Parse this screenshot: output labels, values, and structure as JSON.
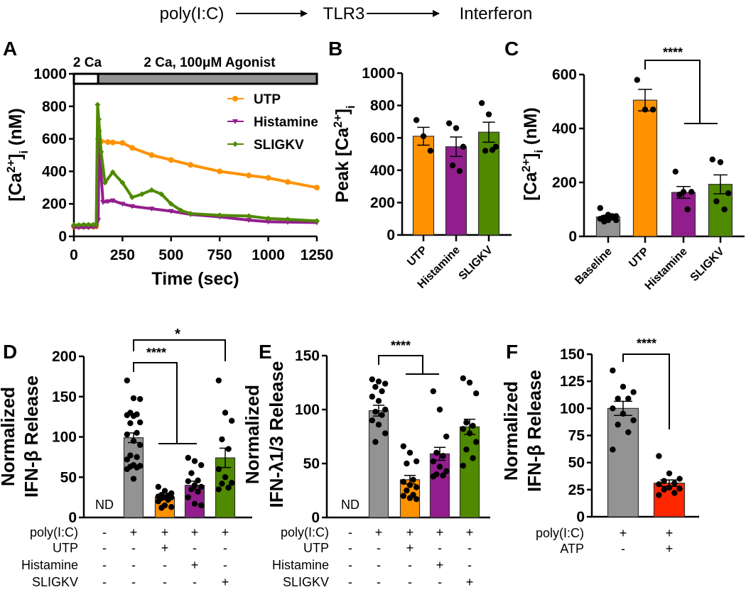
{
  "header": {
    "items": [
      "poly(I:C)",
      "TLR3",
      "Interferon"
    ]
  },
  "colors": {
    "UTP": "#ff9200",
    "Histamine": "#921e8e",
    "SLIGKV": "#4f8a00",
    "control": "#939393",
    "ATP": "#ff2600"
  },
  "chart_data": [
    {
      "panel": "A",
      "type": "line",
      "bar_segments": [
        {
          "label": "2 Ca",
          "from": 0,
          "to": 125
        },
        {
          "label": "2 Ca, 100μM Agonist",
          "from": 125,
          "to": 1250
        }
      ],
      "xlabel": "Time (sec)",
      "ylabel_parts": [
        {
          "text": "[Ca"
        },
        {
          "text": "2+",
          "pos": "sup"
        },
        {
          "text": "]"
        },
        {
          "text": "i",
          "pos": "sub"
        },
        {
          "text": " (nM)"
        }
      ],
      "xlim": [
        0,
        1250
      ],
      "ylim": [
        0,
        1000
      ],
      "xticks": [
        "0",
        "250",
        "500",
        "750",
        "1000",
        "1250"
      ],
      "yticks": [
        "0",
        "200",
        "400",
        "600",
        "800",
        "1000"
      ],
      "legend_position": "top-right",
      "series": [
        {
          "name": "UTP",
          "marker": "circle",
          "x": [
            0,
            25,
            50,
            75,
            100,
            115,
            125,
            140,
            175,
            200,
            250,
            300,
            400,
            500,
            600,
            750,
            900,
            1000,
            1100,
            1250
          ],
          "y": [
            60,
            60,
            60,
            60,
            60,
            62,
            600,
            585,
            580,
            578,
            575,
            545,
            500,
            470,
            440,
            400,
            375,
            360,
            335,
            300
          ]
        },
        {
          "name": "Histamine",
          "marker": "triangle",
          "x": [
            0,
            25,
            50,
            75,
            100,
            115,
            125,
            130,
            140,
            150,
            175,
            200,
            250,
            300,
            400,
            500,
            600,
            750,
            900,
            1000,
            1100,
            1250
          ],
          "y": [
            55,
            55,
            55,
            55,
            58,
            60,
            100,
            640,
            380,
            210,
            215,
            220,
            200,
            185,
            170,
            155,
            135,
            120,
            100,
            90,
            88,
            85
          ]
        },
        {
          "name": "SLIGKV",
          "marker": "diamond",
          "x": [
            0,
            25,
            50,
            75,
            100,
            115,
            122,
            128,
            140,
            160,
            200,
            250,
            300,
            350,
            400,
            450,
            500,
            550,
            600,
            750,
            900,
            1000,
            1100,
            1250
          ],
          "y": [
            70,
            70,
            72,
            72,
            72,
            72,
            810,
            720,
            520,
            330,
            395,
            330,
            240,
            260,
            285,
            260,
            200,
            160,
            140,
            130,
            125,
            110,
            105,
            95
          ]
        }
      ]
    },
    {
      "panel": "B",
      "type": "bar",
      "ylabel_parts": [
        {
          "text": "Peak [Ca"
        },
        {
          "text": "2+",
          "pos": "sup"
        },
        {
          "text": "]"
        },
        {
          "text": "i",
          "pos": "sub"
        }
      ],
      "ylim": [
        0,
        1000
      ],
      "yticks": [
        "0",
        "200",
        "400",
        "600",
        "800",
        "1000"
      ],
      "categories": [
        "UTP",
        "Histamine",
        "SLIGKV"
      ],
      "means": [
        610,
        545,
        635
      ],
      "sem": [
        55,
        60,
        62
      ],
      "points": [
        [
          710,
          610,
          520
        ],
        [
          690,
          660,
          545,
          430,
          395
        ],
        [
          815,
          745,
          545,
          520,
          525
        ]
      ]
    },
    {
      "panel": "C",
      "type": "bar",
      "ylabel_parts": [
        {
          "text": "[Ca"
        },
        {
          "text": "2+",
          "pos": "sup"
        },
        {
          "text": "]"
        },
        {
          "text": "i",
          "pos": "sub"
        },
        {
          "text": " (nM)"
        }
      ],
      "ylim": [
        0,
        600
      ],
      "yticks": [
        "0",
        "200",
        "400",
        "600"
      ],
      "categories": [
        "Baseline",
        "UTP",
        "Histamine",
        "SLIGKV"
      ],
      "means": [
        72,
        505,
        163,
        193
      ],
      "sem": [
        5,
        40,
        22,
        35
      ],
      "points": [
        [
          105,
          80,
          75,
          70,
          75,
          65,
          60,
          60,
          55,
          70
        ],
        [
          580,
          470,
          470
        ],
        [
          240,
          165,
          165,
          155,
          100
        ],
        [
          285,
          275,
          160,
          130,
          100
        ]
      ],
      "significance": [
        {
          "label": "****",
          "from": "UTP",
          "to": [
            "Histamine",
            "SLIGKV"
          ]
        }
      ]
    },
    {
      "panel": "D",
      "type": "bar",
      "ylabel_lines": [
        "Normalized",
        "IFN-β Release"
      ],
      "ylim": [
        0,
        200
      ],
      "yticks": [
        "0",
        "50",
        "100",
        "150",
        "200"
      ],
      "nd_label": "ND",
      "groups": [
        "none",
        "poly(I:C)",
        "poly(I:C)+UTP",
        "poly(I:C)+Histamine",
        "poly(I:C)+SLIGKV"
      ],
      "means": [
        null,
        99,
        25,
        40,
        74
      ],
      "sem": [
        null,
        6,
        2,
        5,
        12
      ],
      "points": [
        [],
        [
          170,
          148,
          147,
          130,
          128,
          127,
          126,
          118,
          117,
          105,
          103,
          95,
          90,
          77,
          75,
          72,
          65,
          64,
          63,
          62,
          60,
          48
        ],
        [
          38,
          33,
          30,
          28,
          27,
          26,
          25,
          25,
          24,
          22,
          20,
          15,
          13,
          12
        ],
        [
          74,
          70,
          65,
          55,
          46,
          45,
          40,
          38,
          35,
          32,
          25,
          17,
          15
        ],
        [
          170,
          130,
          120,
          97,
          85,
          60,
          50,
          43,
          42,
          37,
          35
        ]
      ],
      "bar_colors": [
        "none",
        "control",
        "UTP",
        "Histamine",
        "SLIGKV"
      ],
      "conditions": [
        {
          "label": "poly(I:C)",
          "values": [
            "-",
            "+",
            "+",
            "+",
            "+"
          ]
        },
        {
          "label": "UTP",
          "values": [
            "-",
            "-",
            "+",
            "-",
            "-"
          ]
        },
        {
          "label": "Histamine",
          "values": [
            "-",
            "-",
            "-",
            "+",
            "-"
          ]
        },
        {
          "label": "SLIGKV",
          "values": [
            "-",
            "-",
            "-",
            "-",
            "+"
          ]
        }
      ],
      "significance": [
        {
          "label": "*",
          "from": 1,
          "to": [
            4
          ]
        },
        {
          "label": "****",
          "from": 1,
          "to": [
            2,
            3
          ]
        }
      ]
    },
    {
      "panel": "E",
      "type": "bar",
      "ylabel_lines": [
        "Normalized",
        "IFN-λ1/3 Release"
      ],
      "ylim": [
        0,
        150
      ],
      "yticks": [
        "0",
        "50",
        "100",
        "150"
      ],
      "nd_label": "ND",
      "groups": [
        "none",
        "poly(I:C)",
        "poly(I:C)+UTP",
        "poly(I:C)+Histamine",
        "poly(I:C)+SLIGKV"
      ],
      "means": [
        null,
        99,
        35,
        59,
        84
      ],
      "sem": [
        null,
        5,
        4,
        6,
        7
      ],
      "points": [
        [],
        [
          128,
          126,
          124,
          121,
          117,
          112,
          108,
          100,
          98,
          95,
          90,
          86,
          78,
          70
        ],
        [
          66,
          60,
          52,
          50,
          35,
          33,
          30,
          28,
          25,
          21,
          20,
          18,
          17
        ],
        [
          117,
          100,
          75,
          60,
          57,
          52,
          47,
          43,
          40,
          39,
          38
        ],
        [
          129,
          125,
          115,
          88,
          85,
          82,
          78,
          70,
          63,
          55,
          48
        ]
      ],
      "bar_colors": [
        "none",
        "control",
        "UTP",
        "Histamine",
        "SLIGKV"
      ],
      "conditions": [
        {
          "label": "poly(I:C)",
          "values": [
            "-",
            "+",
            "+",
            "+",
            "+"
          ]
        },
        {
          "label": "UTP",
          "values": [
            "-",
            "-",
            "+",
            "-",
            "-"
          ]
        },
        {
          "label": "Histamine",
          "values": [
            "-",
            "-",
            "-",
            "+",
            "-"
          ]
        },
        {
          "label": "SLIGKV",
          "values": [
            "-",
            "-",
            "-",
            "-",
            "+"
          ]
        }
      ],
      "significance": [
        {
          "label": "****",
          "from": 1,
          "to": [
            2,
            3
          ]
        }
      ]
    },
    {
      "panel": "F",
      "type": "bar",
      "ylabel_lines": [
        "Normalized",
        "IFN-β Release"
      ],
      "ylim": [
        0,
        150
      ],
      "yticks": [
        "0",
        "25",
        "50",
        "75",
        "100",
        "125",
        "150"
      ],
      "groups": [
        "poly(I:C)",
        "poly(I:C)+ATP"
      ],
      "means": [
        100,
        31
      ],
      "sem": [
        6.5,
        3
      ],
      "points": [
        [
          135,
          120,
          115,
          109,
          109,
          100,
          95,
          89,
          85,
          78,
          62
        ],
        [
          56,
          40,
          35,
          33,
          31,
          30,
          27,
          26,
          25,
          22,
          20
        ]
      ],
      "bar_colors": [
        "control",
        "ATP"
      ],
      "conditions": [
        {
          "label": "poly(I:C)",
          "values": [
            "+",
            "+"
          ]
        },
        {
          "label": "ATP",
          "values": [
            "-",
            "+"
          ]
        }
      ],
      "significance": [
        {
          "label": "****",
          "from": 0,
          "to": [
            1
          ]
        }
      ]
    }
  ]
}
